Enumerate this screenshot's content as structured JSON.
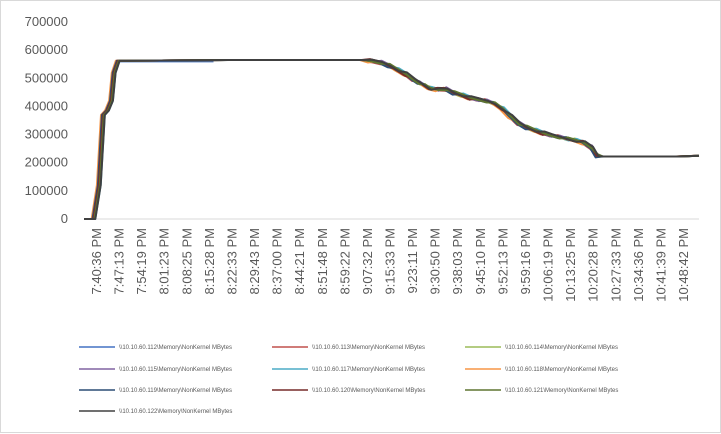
{
  "chart_data": {
    "type": "line",
    "title": "",
    "xlabel": "",
    "ylabel": "",
    "ylim": [
      0,
      700000
    ],
    "yticks": [
      0,
      100000,
      200000,
      300000,
      400000,
      500000,
      600000,
      700000
    ],
    "ytick_labels": [
      "0",
      "100000",
      "200000",
      "300000",
      "400000",
      "500000",
      "600000",
      "700000"
    ],
    "x_tick_labels": [
      "7:40:36 PM",
      "7:47:13 PM",
      "7:54:19 PM",
      "8:01:23 PM",
      "8:08:25 PM",
      "8:15:28 PM",
      "8:22:33 PM",
      "8:29:43 PM",
      "8:37:00 PM",
      "8:44:21 PM",
      "8:51:48 PM",
      "8:59:22 PM",
      "9:07:32 PM",
      "9:15:33 PM",
      "9:23:11 PM",
      "9:30:50 PM",
      "9:38:03 PM",
      "9:45:10 PM",
      "9:52:13 PM",
      "9:59:16 PM",
      "10:06:19 PM",
      "10:13:25 PM",
      "10:20:28 PM",
      "10:27:33 PM",
      "10:34:36 PM",
      "10:41:39 PM",
      "10:48:42 PM"
    ],
    "x_unit": "minutes",
    "grid": false,
    "legend_position": "bottom",
    "typical_profile": [
      {
        "x": 0,
        "y": 0
      },
      {
        "x": 3.5,
        "y": 0
      },
      {
        "x": 5.5,
        "y": 120000
      },
      {
        "x": 7.0,
        "y": 370000
      },
      {
        "x": 8.5,
        "y": 385000
      },
      {
        "x": 10.0,
        "y": 420000
      },
      {
        "x": 11.0,
        "y": 520000
      },
      {
        "x": 12.5,
        "y": 562000
      },
      {
        "x": 53,
        "y": 565000
      },
      {
        "x": 103,
        "y": 565000
      },
      {
        "x": 106,
        "y": 562000
      },
      {
        "x": 110,
        "y": 556000
      },
      {
        "x": 113,
        "y": 545000
      },
      {
        "x": 116,
        "y": 530000
      },
      {
        "x": 119,
        "y": 515000
      },
      {
        "x": 122,
        "y": 495000
      },
      {
        "x": 124,
        "y": 485000
      },
      {
        "x": 126,
        "y": 475000
      },
      {
        "x": 128,
        "y": 465000
      },
      {
        "x": 131,
        "y": 460000
      },
      {
        "x": 134,
        "y": 462000
      },
      {
        "x": 137,
        "y": 448000
      },
      {
        "x": 140,
        "y": 440000
      },
      {
        "x": 143,
        "y": 430000
      },
      {
        "x": 146,
        "y": 425000
      },
      {
        "x": 149,
        "y": 420000
      },
      {
        "x": 152,
        "y": 410000
      },
      {
        "x": 155,
        "y": 392000
      },
      {
        "x": 158,
        "y": 365000
      },
      {
        "x": 161,
        "y": 340000
      },
      {
        "x": 164,
        "y": 325000
      },
      {
        "x": 167,
        "y": 315000
      },
      {
        "x": 170,
        "y": 305000
      },
      {
        "x": 173,
        "y": 298000
      },
      {
        "x": 176,
        "y": 292000
      },
      {
        "x": 179,
        "y": 285000
      },
      {
        "x": 182,
        "y": 280000
      },
      {
        "x": 185,
        "y": 272000
      },
      {
        "x": 188,
        "y": 255000
      },
      {
        "x": 190,
        "y": 225000
      },
      {
        "x": 192,
        "y": 222000
      },
      {
        "x": 220,
        "y": 222000
      },
      {
        "x": 228,
        "y": 225000
      }
    ],
    "series": [
      {
        "name": "\\\\10.10.60.112\\Memory\\NonKernel MBytes",
        "color": "#4472c4",
        "x_end": 48,
        "y_end": 560000
      },
      {
        "name": "\\\\10.10.60.113\\Memory\\NonKernel MBytes",
        "color": "#c0504d"
      },
      {
        "name": "\\\\10.10.60.114\\Memory\\NonKernel MBytes",
        "color": "#9bbb59"
      },
      {
        "name": "\\\\10.10.60.115\\Memory\\NonKernel MBytes",
        "color": "#8064a2"
      },
      {
        "name": "\\\\10.10.60.117\\Memory\\NonKernel MBytes",
        "color": "#4bacc6"
      },
      {
        "name": "\\\\10.10.60.118\\Memory\\NonKernel MBytes",
        "color": "#f79646"
      },
      {
        "name": "\\\\10.10.60.119\\Memory\\NonKernel MBytes",
        "color": "#2c4d75"
      },
      {
        "name": "\\\\10.10.60.120\\Memory\\NonKernel MBytes",
        "color": "#772c2a"
      },
      {
        "name": "\\\\10.10.60.121\\Memory\\NonKernel MBytes",
        "color": "#5f7530"
      },
      {
        "name": "\\\\10.10.60.122\\Memory\\NonKernel MBytes",
        "color": "#404040"
      }
    ]
  }
}
